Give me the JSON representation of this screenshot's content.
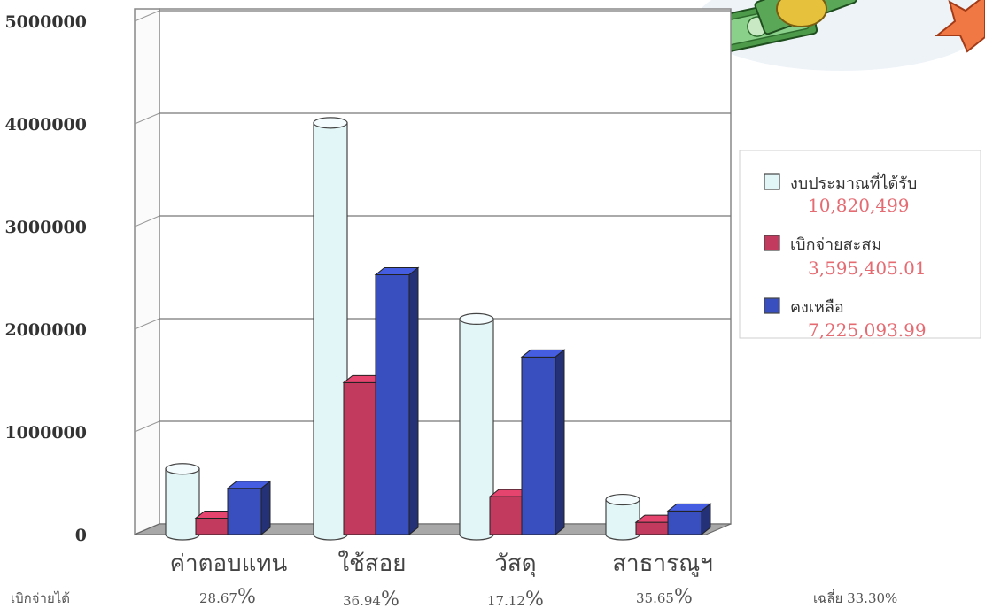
{
  "colors": {
    "budget": "#e3f6f7",
    "spent": "#c23a5e",
    "remaining": "#3a4fbf",
    "legend_value": "#e56b72"
  },
  "legend_values": {
    "budget": "10,820,499",
    "spent": "3,595,405.01",
    "remaining": "7,225,093.99"
  },
  "percent_row": {
    "label": "เบิกจ่ายได้",
    "values": [
      "28.67",
      "36.94",
      "17.12",
      "35.65"
    ],
    "symbol": "%",
    "average": "เฉลี่ย 33.30%"
  },
  "decoration": {
    "money_illustration": "money-icon"
  },
  "chart_data": {
    "type": "bar",
    "style": "3d-clustered",
    "categories": [
      "ค่าตอบแทน",
      "ใช้สอย",
      "วัสดุ",
      "สาธารณูฯ"
    ],
    "series": [
      {
        "name": "งบประมาณที่ได้รับ",
        "values": [
          640000,
          4010000,
          2100000,
          340000
        ]
      },
      {
        "name": "เบิกจ่ายสะสม",
        "values": [
          160000,
          1480000,
          370000,
          120000
        ]
      },
      {
        "name": "คงเหลือ",
        "values": [
          450000,
          2530000,
          1730000,
          230000
        ]
      }
    ],
    "yticks": [
      "0",
      "1000000",
      "2000000",
      "3000000",
      "4000000",
      "5000000"
    ],
    "ylim": [
      0,
      5000000
    ],
    "grid": true,
    "legend_position": "right",
    "xlabel": "",
    "ylabel": ""
  }
}
